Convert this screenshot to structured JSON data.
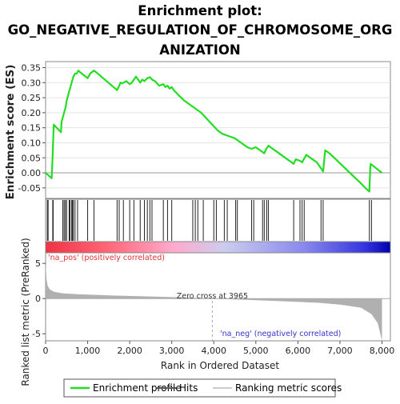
{
  "chart_data": {
    "type": "line",
    "title_lines": [
      "Enrichment plot:",
      "GO_NEGATIVE_REGULATION_OF_CHROMOSOME_ORG",
      "ANIZATION"
    ],
    "es_panel": {
      "ylabel": "Enrichment score (ES)",
      "ylim": [
        -0.085,
        0.37
      ],
      "yticks": [
        "0.35",
        "0.30",
        "0.25",
        "0.20",
        "0.15",
        "0.10",
        "0.05",
        "0.00",
        "-0.05"
      ],
      "ytick_values": [
        0.35,
        0.3,
        0.25,
        0.2,
        0.15,
        0.1,
        0.05,
        0.0,
        -0.05
      ],
      "series": [
        {
          "line_color": "#22dd22",
          "x": [
            0,
            145,
            165,
            180,
            195,
            365,
            380,
            420,
            440,
            480,
            500,
            540,
            560,
            580,
            600,
            620,
            640,
            660,
            700,
            740,
            780,
            820,
            1000,
            1060,
            1100,
            1150,
            1200,
            1700,
            1750,
            1780,
            1820,
            1880,
            1920,
            2000,
            2050,
            2100,
            2150,
            2250,
            2300,
            2350,
            2420,
            2480,
            2530,
            2600,
            2700,
            2800,
            2850,
            2900,
            2950,
            3000,
            3050,
            3150,
            3300,
            3500,
            3600,
            3700,
            3800,
            3900,
            4000,
            4100,
            4200,
            4300,
            4400,
            4500,
            4600,
            4700,
            4800,
            4900,
            5000,
            5100,
            5150,
            5200,
            5250,
            5300,
            5350,
            5500,
            5700,
            5900,
            5950,
            6050,
            6100,
            6200,
            6300,
            6450,
            6550,
            6600,
            6650,
            6750,
            6900,
            7050,
            7200,
            7350,
            7500,
            7600,
            7700,
            7720,
            7730,
            8000
          ],
          "y": [
            0.0,
            -0.018,
            0.05,
            0.11,
            0.16,
            0.135,
            0.17,
            0.19,
            0.2,
            0.22,
            0.24,
            0.26,
            0.27,
            0.28,
            0.29,
            0.3,
            0.31,
            0.32,
            0.33,
            0.33,
            0.34,
            0.335,
            0.315,
            0.33,
            0.335,
            0.34,
            0.335,
            0.275,
            0.29,
            0.3,
            0.298,
            0.302,
            0.305,
            0.295,
            0.3,
            0.31,
            0.32,
            0.3,
            0.31,
            0.305,
            0.315,
            0.318,
            0.31,
            0.305,
            0.29,
            0.295,
            0.285,
            0.29,
            0.28,
            0.285,
            0.275,
            0.26,
            0.24,
            0.22,
            0.21,
            0.2,
            0.185,
            0.17,
            0.155,
            0.14,
            0.13,
            0.125,
            0.12,
            0.115,
            0.105,
            0.095,
            0.085,
            0.08,
            0.085,
            0.075,
            0.07,
            0.065,
            0.08,
            0.09,
            0.085,
            0.07,
            0.05,
            0.03,
            0.045,
            0.04,
            0.035,
            0.06,
            0.05,
            0.035,
            0.015,
            0.005,
            0.075,
            0.065,
            0.045,
            0.025,
            0.005,
            -0.015,
            -0.035,
            -0.05,
            -0.062,
            0.015,
            0.03,
            0.0
          ]
        }
      ]
    },
    "hits": [
      40,
      60,
      170,
      180,
      410,
      440,
      470,
      500,
      560,
      580,
      620,
      640,
      660,
      700,
      760,
      1000,
      1150,
      1700,
      1750,
      1850,
      2000,
      2100,
      2250,
      2350,
      2420,
      2480,
      2530,
      2800,
      2900,
      3000,
      3500,
      3560,
      3620,
      3750,
      4000,
      4060,
      4250,
      4320,
      4520,
      4560,
      4900,
      4950,
      5160,
      5200,
      5260,
      5300,
      5900,
      6050,
      6100,
      6150,
      6550,
      6600,
      7700,
      7750
    ],
    "rank_panel": {
      "ylabel": "Ranked list metric (PreRanked)",
      "ylim": [
        -6,
        6.5
      ],
      "yticks": [
        "5",
        "0",
        "-5"
      ],
      "ytick_values": [
        5,
        0,
        -5
      ],
      "zero_cross_label": "Zero cross at 3965",
      "zero_cross": 3965,
      "pos_label": "'na_pos' (positively correlated)",
      "neg_label": "'na_neg' (negatively correlated)",
      "pos_label_color": "#dd3333",
      "neg_label_color": "#3333cc",
      "fill_color": "#b0b0b0",
      "metric_profile": {
        "x": [
          0,
          20,
          50,
          100,
          200,
          400,
          800,
          1500,
          2500,
          3500,
          3965,
          4500,
          5500,
          6500,
          7000,
          7500,
          7750,
          7900,
          7960,
          8000
        ],
        "y": [
          5.2,
          2.8,
          1.8,
          1.3,
          0.95,
          0.75,
          0.6,
          0.45,
          0.3,
          0.12,
          0.0,
          -0.12,
          -0.35,
          -0.6,
          -0.85,
          -1.3,
          -2.2,
          -3.5,
          -5.0,
          -6.0
        ]
      }
    },
    "xaxis": {
      "label": "Rank in Ordered Dataset",
      "xlim": [
        0,
        8200
      ],
      "ticks": [
        "0",
        "1,000",
        "2,000",
        "3,000",
        "4,000",
        "5,000",
        "6,000",
        "7,000",
        "8,000"
      ],
      "tick_values": [
        0,
        1000,
        2000,
        3000,
        4000,
        5000,
        6000,
        7000,
        8000
      ]
    },
    "legend": {
      "placement": "bottom",
      "items": [
        {
          "label": "Enrichment profile",
          "color": "#22dd22",
          "kind": "line"
        },
        {
          "label": "Hits",
          "color": "#555555",
          "kind": "line"
        },
        {
          "label": "Ranking metric scores",
          "color": "#cccccc",
          "kind": "line"
        }
      ]
    },
    "colors": {
      "gradient": [
        "#ee3344",
        "#ff6677",
        "#ffaacc",
        "#ccccee",
        "#8888ee",
        "#3333dd",
        "#0000aa"
      ]
    }
  }
}
